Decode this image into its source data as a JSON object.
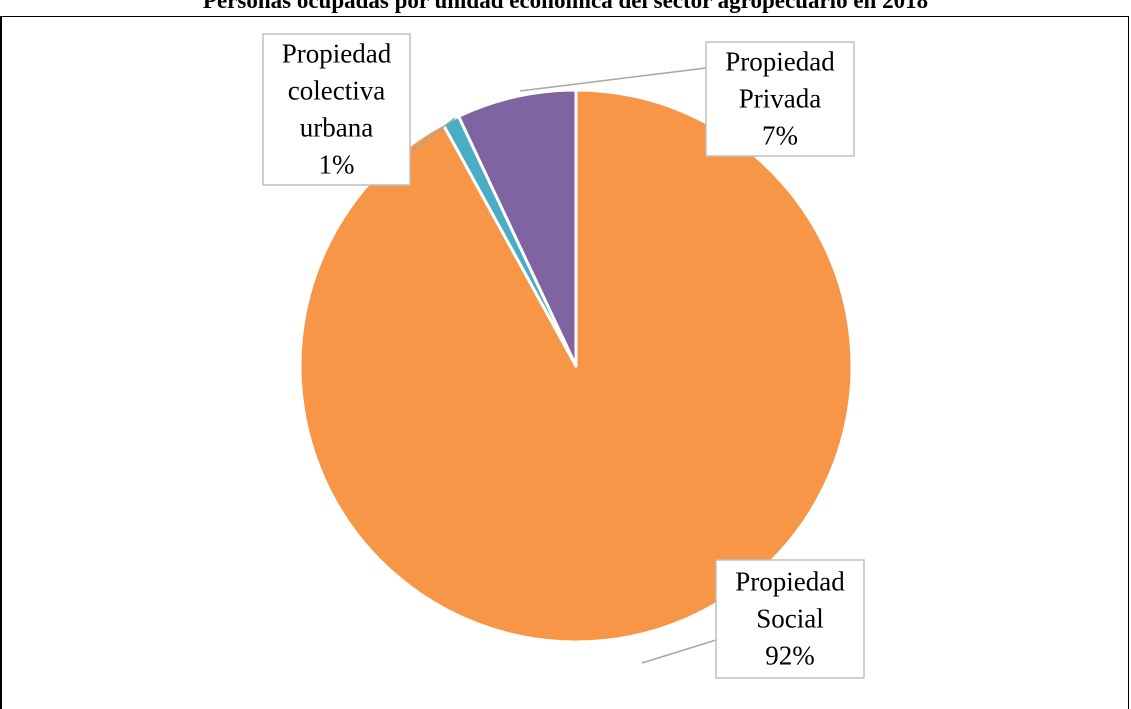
{
  "chart_data": {
    "type": "pie",
    "title": "Personas ocupadas por unidad económica del sector agropecuario en 2018",
    "slices": [
      {
        "label_lines": [
          "Propiedad",
          "Privada",
          "7%"
        ],
        "value": 7,
        "color": "#8064a2"
      },
      {
        "label_lines": [
          "Propiedad",
          "Social",
          "92%"
        ],
        "value": 92,
        "color": "#f79646"
      },
      {
        "label_lines": [
          "Propiedad",
          "colectiva",
          "urbana",
          "1%"
        ],
        "value": 1,
        "color": "#4bacc6"
      }
    ],
    "legend": "none",
    "data_labels": "callout"
  }
}
